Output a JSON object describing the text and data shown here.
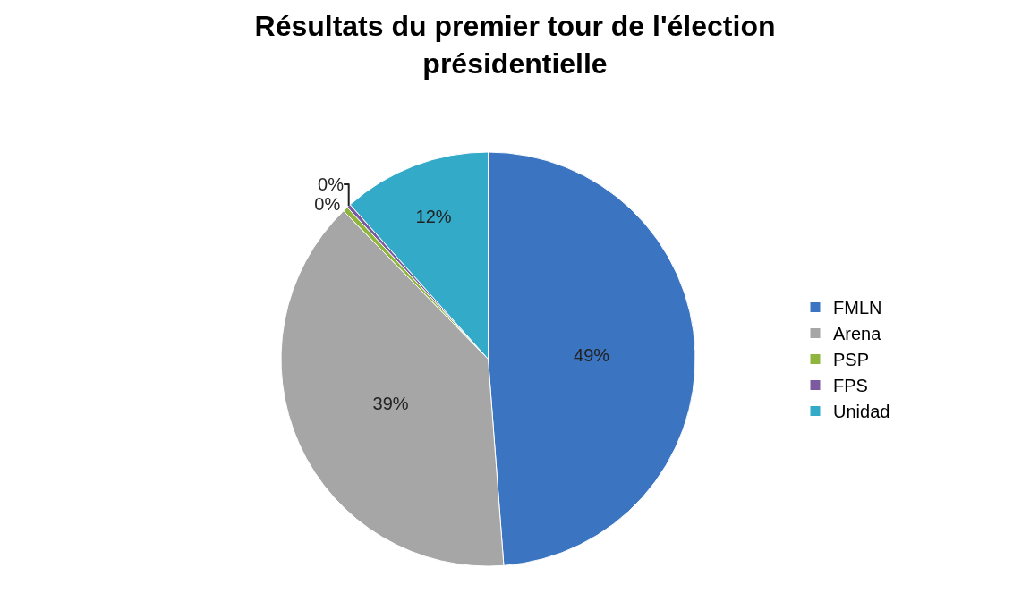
{
  "chart_data": {
    "type": "pie",
    "title": "Résultats du premier tour de l'élection présidentielle",
    "categories": [
      "FMLN",
      "Arena",
      "PSP",
      "FPS",
      "Unidad"
    ],
    "values": [
      48.8,
      38.9,
      0.4,
      0.3,
      11.6
    ],
    "value_labels": [
      "49%",
      "39%",
      "0%",
      "0%",
      "12%"
    ],
    "colors": [
      "#3b74c0",
      "#a6a6a6",
      "#8fb53e",
      "#7b5aa0",
      "#33aac8"
    ],
    "legend": "right"
  }
}
